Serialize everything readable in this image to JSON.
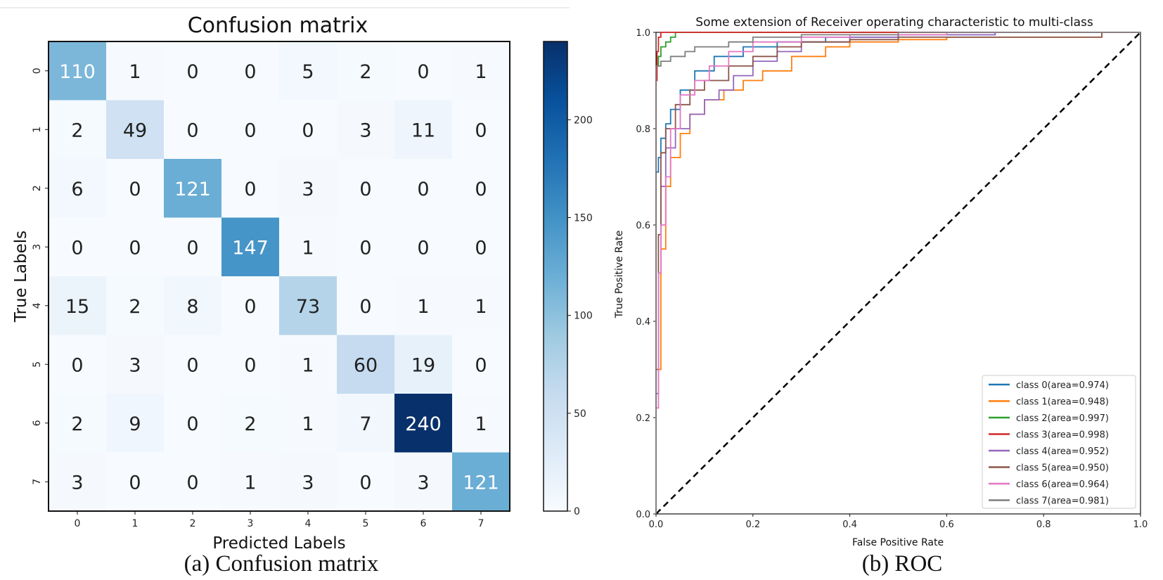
{
  "chart_data": [
    {
      "type": "heatmap",
      "title": "Confusion matrix",
      "xlabel": "Predicted Labels",
      "ylabel": "True Labels",
      "x_ticks": [
        "0",
        "1",
        "2",
        "3",
        "4",
        "5",
        "6",
        "7"
      ],
      "y_ticks": [
        "0",
        "1",
        "2",
        "3",
        "4",
        "5",
        "6",
        "7"
      ],
      "matrix": [
        [
          110,
          1,
          0,
          0,
          5,
          2,
          0,
          1
        ],
        [
          2,
          49,
          0,
          0,
          0,
          3,
          11,
          0
        ],
        [
          6,
          0,
          121,
          0,
          3,
          0,
          0,
          0
        ],
        [
          0,
          0,
          0,
          147,
          1,
          0,
          0,
          0
        ],
        [
          15,
          2,
          8,
          0,
          73,
          0,
          1,
          1
        ],
        [
          0,
          3,
          0,
          0,
          1,
          60,
          19,
          0
        ],
        [
          2,
          9,
          0,
          2,
          1,
          7,
          240,
          1
        ],
        [
          3,
          0,
          0,
          1,
          3,
          0,
          3,
          121
        ]
      ],
      "colorbar": {
        "min": 0,
        "max": 240,
        "ticks": [
          0,
          50,
          100,
          150,
          200
        ],
        "labels": [
          "0",
          "50",
          "100",
          "150",
          "200"
        ],
        "cmap": "Blues"
      },
      "caption": "(a) Confusion matrix"
    },
    {
      "type": "line",
      "title": "Some extension of Receiver operating characteristic to multi-class",
      "xlabel": "False Positive Rate",
      "ylabel": "True Positive Rate",
      "xlim": [
        0,
        1
      ],
      "ylim": [
        0,
        1
      ],
      "x_ticks": [
        0,
        0.2,
        0.4,
        0.6,
        0.8,
        1.0
      ],
      "x_tick_labels": [
        "0.0",
        "0.2",
        "0.4",
        "0.6",
        "0.8",
        "1.0"
      ],
      "y_ticks": [
        0,
        0.2,
        0.4,
        0.6,
        0.8,
        1.0
      ],
      "y_tick_labels": [
        "0.0",
        "0.2",
        "0.4",
        "0.6",
        "0.8",
        "1.0"
      ],
      "legend_position": "lower-right",
      "series": [
        {
          "name": "class 0(area=0.974)",
          "color": "#1f77b4",
          "x": [
            0,
            0,
            0.005,
            0.01,
            0.02,
            0.03,
            0.05,
            0.08,
            0.12,
            0.18,
            0.25,
            0.35,
            0.5,
            0.7,
            0.9,
            1.0
          ],
          "y": [
            0,
            0.68,
            0.71,
            0.74,
            0.78,
            0.81,
            0.84,
            0.88,
            0.92,
            0.95,
            0.97,
            0.98,
            0.99,
            0.995,
            1.0,
            1.0
          ]
        },
        {
          "name": "class 1(area=0.948)",
          "color": "#ff7f0e",
          "x": [
            0,
            0.01,
            0.02,
            0.03,
            0.05,
            0.07,
            0.1,
            0.14,
            0.18,
            0.22,
            0.28,
            0.35,
            0.4,
            0.5,
            0.6,
            0.92,
            1.0
          ],
          "y": [
            0,
            0.3,
            0.55,
            0.68,
            0.74,
            0.79,
            0.83,
            0.86,
            0.88,
            0.9,
            0.92,
            0.95,
            0.97,
            0.98,
            0.985,
            0.99,
            1.0
          ]
        },
        {
          "name": "class 2(area=0.997)",
          "color": "#2ca02c",
          "x": [
            0,
            0,
            0.005,
            0.01,
            0.02,
            0.03,
            0.04,
            0.06,
            1.0
          ],
          "y": [
            0,
            0.89,
            0.93,
            0.95,
            0.97,
            0.98,
            0.99,
            1.0,
            1.0
          ]
        },
        {
          "name": "class 3(area=0.998)",
          "color": "#d62728",
          "x": [
            0,
            0,
            0.002,
            0.005,
            0.01,
            0.015,
            1.0
          ],
          "y": [
            0,
            0.8,
            0.9,
            0.96,
            0.99,
            1.0,
            1.0
          ]
        },
        {
          "name": "class 4(area=0.952)",
          "color": "#9467bd",
          "x": [
            0,
            0.005,
            0.01,
            0.02,
            0.04,
            0.07,
            0.1,
            0.13,
            0.16,
            0.2,
            0.25,
            0.3,
            0.4,
            0.5,
            0.7,
            1.0
          ],
          "y": [
            0,
            0.25,
            0.5,
            0.68,
            0.76,
            0.8,
            0.83,
            0.86,
            0.88,
            0.91,
            0.94,
            0.96,
            0.98,
            0.99,
            0.995,
            1.0
          ]
        },
        {
          "name": "class 5(area=0.950)",
          "color": "#8c564b",
          "x": [
            0,
            0.005,
            0.01,
            0.02,
            0.04,
            0.07,
            0.1,
            0.15,
            0.2,
            0.25,
            0.3,
            0.4,
            0.5,
            0.7,
            0.92,
            1.0
          ],
          "y": [
            0,
            0.3,
            0.58,
            0.75,
            0.8,
            0.85,
            0.88,
            0.9,
            0.93,
            0.95,
            0.97,
            0.98,
            0.985,
            0.99,
            0.99,
            1.0
          ]
        },
        {
          "name": "class 6(area=0.964)",
          "color": "#e377c2",
          "x": [
            0,
            0.005,
            0.01,
            0.02,
            0.03,
            0.05,
            0.08,
            0.11,
            0.15,
            0.2,
            0.3,
            0.4,
            0.6,
            0.8,
            1.0
          ],
          "y": [
            0,
            0.22,
            0.5,
            0.6,
            0.7,
            0.8,
            0.87,
            0.9,
            0.93,
            0.96,
            0.98,
            0.99,
            0.995,
            1.0,
            1.0
          ]
        },
        {
          "name": "class 7(area=0.981)",
          "color": "#7f7f7f",
          "x": [
            0,
            0,
            0.01,
            0.03,
            0.06,
            0.08,
            0.12,
            0.15,
            0.2,
            0.3,
            0.5,
            0.7,
            0.9,
            1.0
          ],
          "y": [
            0,
            0.9,
            0.93,
            0.94,
            0.95,
            0.96,
            0.97,
            0.97,
            0.98,
            0.99,
            0.995,
            1.0,
            1.0,
            1.0
          ]
        }
      ],
      "reference_line": {
        "x": [
          0,
          1
        ],
        "y": [
          0,
          1
        ],
        "style": "dashed",
        "color": "#000000"
      },
      "caption": "(b) ROC"
    }
  ]
}
